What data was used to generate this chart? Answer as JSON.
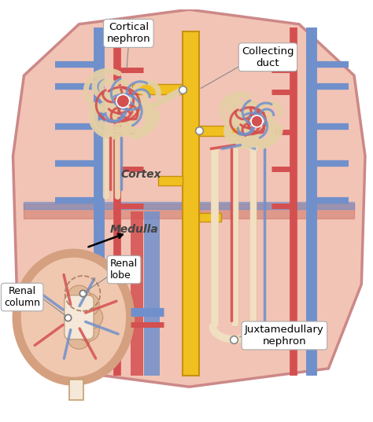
{
  "fig_width": 4.74,
  "fig_height": 5.37,
  "dpi": 100,
  "bg_color": "#f2c4b5",
  "shield_edge": "#cc8888",
  "cortex_line_color": "#d4a0a0",
  "collecting_duct_color": "#f0c020",
  "collecting_duct_edge": "#c89010",
  "artery_color": "#d45050",
  "vein_color": "#7090cc",
  "tubule_fill": "#f0dfc0",
  "tubule_edge": "#c8a860",
  "medulla_bar_color": "#cc7060",
  "small_kidney_fill": "#f0c8b0",
  "small_kidney_edge": "#cc8860",
  "small_kidney_inner": "#e8b898",
  "pelvis_fill": "#f5e8d8",
  "cortex_label": "Cortex",
  "medulla_label": "Medulla",
  "cortical_nephron_label": "Cortical\nnephron",
  "collecting_duct_label": "Collecting\nduct",
  "renal_lobe_label": "Renal\nlobe",
  "renal_column_label": "Renal\ncolumn",
  "juxtamedullary_label": "Juxtamedullary\nnephron",
  "label_fontsize": 9,
  "region_fontsize": 10
}
